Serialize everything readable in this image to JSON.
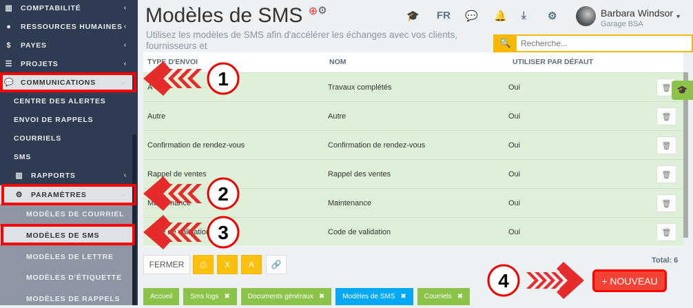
{
  "sidebar": {
    "items": [
      {
        "label": "COMPTABILITÉ",
        "icon": "bar-chart-icon"
      },
      {
        "label": "RESSOURCES HUMAINES",
        "icon": "user-icon"
      },
      {
        "label": "PAYES",
        "icon": "dollar-icon"
      },
      {
        "label": "PROJETS",
        "icon": "list-icon"
      },
      {
        "label": "COMMUNICATIONS",
        "icon": "comments-icon"
      },
      {
        "label": "CENTRE DES ALERTES"
      },
      {
        "label": "ENVOI DE RAPPELS"
      },
      {
        "label": "COURRIELS"
      },
      {
        "label": "SMS"
      },
      {
        "label": "RAPPORTS",
        "icon": "bar-chart-icon"
      },
      {
        "label": "PARAMÈTRES",
        "icon": "gear-icon"
      },
      {
        "label": "MODÈLES DE COURRIEL"
      },
      {
        "label": "MODÈLES DE SMS"
      },
      {
        "label": "MODÈLES DE LETTRE"
      },
      {
        "label": "MODÈLES D'ÉTIQUETTE"
      },
      {
        "label": "MODÈLES DE RAPPELS"
      }
    ]
  },
  "header": {
    "title": "Modèles de SMS",
    "subtitle": "Utilisez les modèles de SMS afin d'accélérer les échanges avec vos clients, fournisseurs et",
    "lang": "FR",
    "user_name": "Barbara Windsor",
    "company": "Garage BSA"
  },
  "search": {
    "placeholder": "Recherche..."
  },
  "table": {
    "columns": [
      "TYPE D'ENVOI",
      "NOM",
      "UTILISER PAR DÉFAUT"
    ],
    "rows": [
      {
        "type": "A",
        "name": "Travaux complétés",
        "default": "Oui"
      },
      {
        "type": "Autre",
        "name": "Autre",
        "default": "Oui"
      },
      {
        "type": "Confirmation de rendez-vous",
        "name": "Confirmation de rendez-vous",
        "default": "Oui"
      },
      {
        "type": "Rappel de ventes",
        "name": "Rappel des ventes",
        "default": "Oui"
      },
      {
        "type": "Maintenance",
        "name": "Maintenance",
        "default": "Oui"
      },
      {
        "type": "Code de validation",
        "name": "Code de validation",
        "default": "Oui"
      }
    ]
  },
  "toolbar": {
    "close": "FERMER",
    "total": "Total: 6",
    "new": "+ NOUVEAU"
  },
  "tabs": [
    {
      "label": "Accueil"
    },
    {
      "label": "Sms logs"
    },
    {
      "label": "Documents généraux"
    },
    {
      "label": "Modèles de SMS"
    },
    {
      "label": "Courriels"
    }
  ],
  "annotations": [
    "1",
    "2",
    "3",
    "4"
  ],
  "colors": {
    "sidebar": "#2e3b50",
    "row": "#dff0d8",
    "accent": "#fbbf0e",
    "danger": "#f44336",
    "tab": "#8bc34a",
    "tab_active": "#03a9f4"
  }
}
